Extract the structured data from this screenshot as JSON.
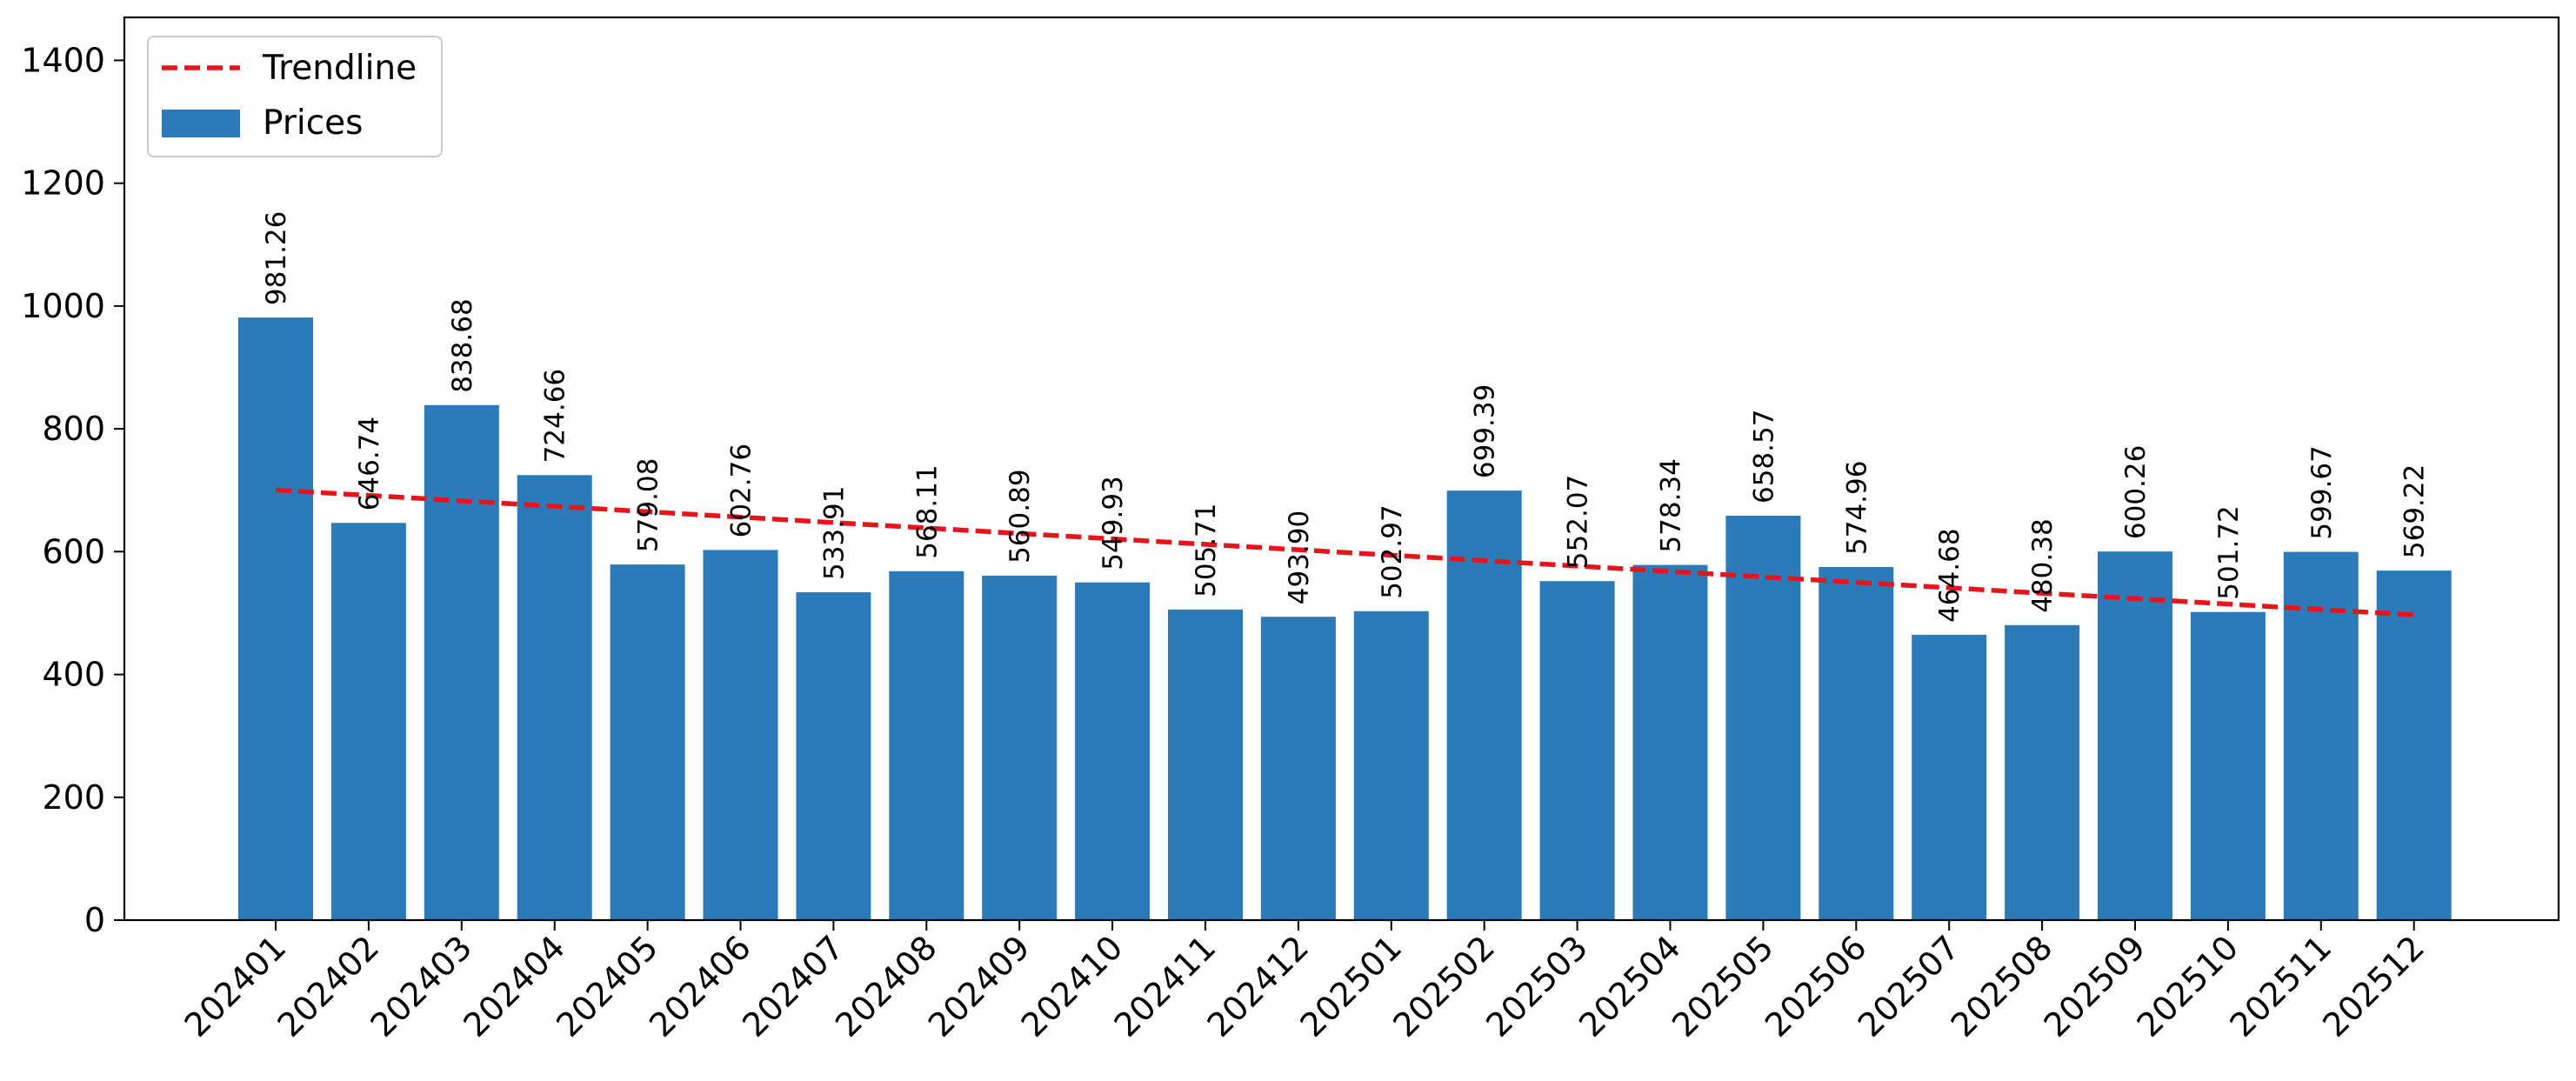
{
  "chart_data": {
    "type": "bar",
    "title": "",
    "xlabel": "",
    "ylabel": "",
    "ylim": [
      0,
      1470
    ],
    "yticks": [
      0,
      200,
      400,
      600,
      800,
      1000,
      1200,
      1400
    ],
    "categories": [
      "202401",
      "202402",
      "202403",
      "202404",
      "202405",
      "202406",
      "202407",
      "202408",
      "202409",
      "202410",
      "202411",
      "202412",
      "202501",
      "202502",
      "202503",
      "202504",
      "202505",
      "202506",
      "202507",
      "202508",
      "202509",
      "202510",
      "202511",
      "202512"
    ],
    "series": [
      {
        "name": "Prices",
        "type": "bar",
        "color": "#2b7bba",
        "values": [
          981.26,
          646.74,
          838.68,
          724.66,
          579.08,
          602.76,
          533.91,
          568.11,
          560.89,
          549.93,
          505.71,
          493.9,
          502.97,
          699.39,
          552.07,
          578.34,
          658.57,
          574.96,
          464.68,
          480.38,
          600.26,
          501.72,
          599.67,
          569.22
        ],
        "value_labels": [
          "981.26",
          "646.74",
          "838.68",
          "724.66",
          "579.08",
          "602.76",
          "533.91",
          "568.11",
          "560.89",
          "549.93",
          "505.71",
          "493.90",
          "502.97",
          "699.39",
          "552.07",
          "578.34",
          "658.57",
          "574.96",
          "464.68",
          "480.38",
          "600.26",
          "501.72",
          "599.67",
          "569.22"
        ]
      },
      {
        "name": "Trendline",
        "type": "line",
        "style": "dashed",
        "color": "#e8141c",
        "start": 700.5,
        "end": 497.0
      }
    ],
    "legend": {
      "position": "top-left",
      "entries": [
        "Trendline",
        "Prices"
      ]
    },
    "grid": false
  }
}
